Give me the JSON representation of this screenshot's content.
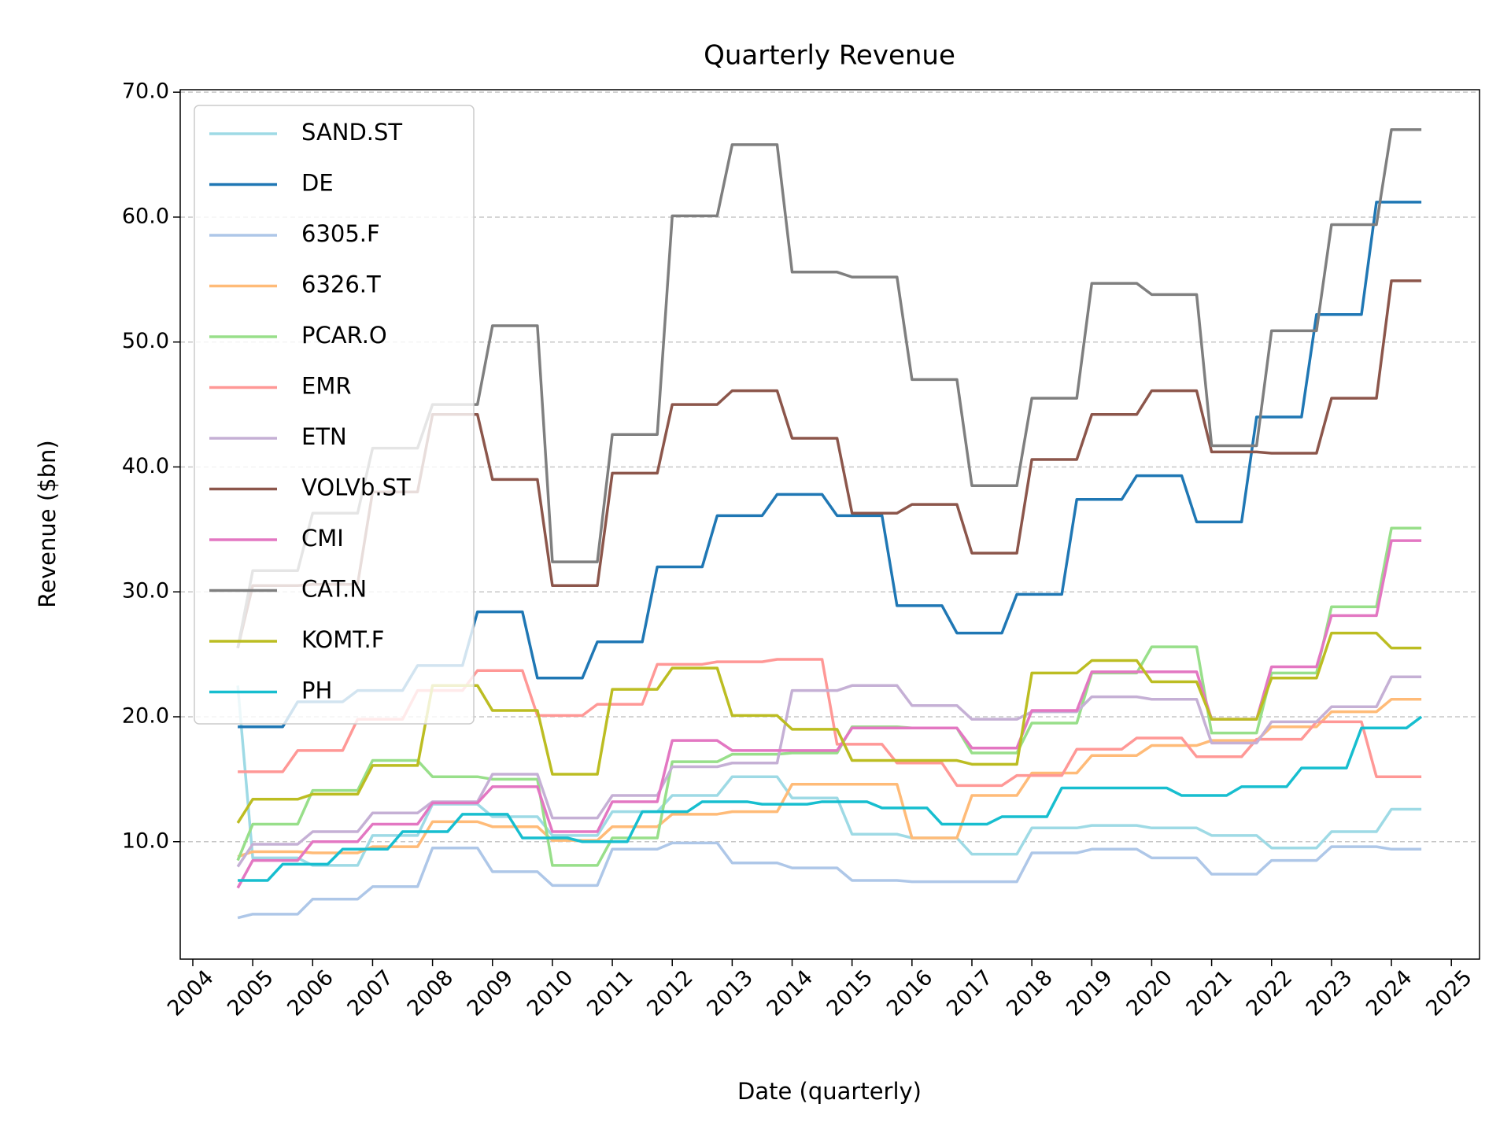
{
  "chart_data": {
    "type": "line",
    "title": "Quarterly Revenue",
    "xlabel": "Date (quarterly)",
    "ylabel": "Revenue ($bn)",
    "x": [
      "2004-10",
      "2005-01",
      "2005-04",
      "2005-07",
      "2005-10",
      "2006-01",
      "2006-04",
      "2006-07",
      "2006-10",
      "2007-01",
      "2007-04",
      "2007-07",
      "2007-10",
      "2008-01",
      "2008-04",
      "2008-07",
      "2008-10",
      "2009-01",
      "2009-04",
      "2009-07",
      "2009-10",
      "2010-01",
      "2010-04",
      "2010-07",
      "2010-10",
      "2011-01",
      "2011-04",
      "2011-07",
      "2011-10",
      "2012-01",
      "2012-04",
      "2012-07",
      "2012-10",
      "2013-01",
      "2013-04",
      "2013-07",
      "2013-10",
      "2014-01",
      "2014-04",
      "2014-07",
      "2014-10",
      "2015-01",
      "2015-04",
      "2015-07",
      "2015-10",
      "2016-01",
      "2016-04",
      "2016-07",
      "2016-10",
      "2017-01",
      "2017-04",
      "2017-07",
      "2017-10",
      "2018-01",
      "2018-04",
      "2018-07",
      "2018-10",
      "2019-01",
      "2019-04",
      "2019-07",
      "2019-10",
      "2020-01",
      "2020-04",
      "2020-07",
      "2020-10",
      "2021-01",
      "2021-04",
      "2021-07",
      "2021-10",
      "2022-01",
      "2022-04",
      "2022-07",
      "2022-10",
      "2023-01",
      "2023-04",
      "2023-07",
      "2023-10",
      "2024-01",
      "2024-04",
      "2024-07"
    ],
    "series": [
      {
        "name": "SAND.ST",
        "color": "#9edae5",
        "values": [
          22.5,
          8.7,
          8.7,
          8.7,
          8.7,
          8.1,
          8.1,
          8.1,
          8.1,
          10.5,
          10.5,
          10.5,
          10.5,
          13,
          13,
          13,
          13,
          12,
          12,
          12,
          12,
          10.5,
          10.5,
          10.5,
          10.5,
          12.4,
          12.4,
          12.4,
          12.4,
          13.7,
          13.7,
          13.7,
          13.7,
          15.2,
          15.2,
          15.2,
          15.2,
          13.5,
          13.5,
          13.5,
          13.5,
          10.6,
          10.6,
          10.6,
          10.6,
          10.3,
          10.3,
          10.3,
          10.3,
          9,
          9,
          9,
          9,
          11.1,
          11.1,
          11.1,
          11.1,
          11.3,
          11.3,
          11.3,
          11.3,
          11.1,
          11.1,
          11.1,
          11.1,
          10.5,
          10.5,
          10.5,
          10.5,
          9.5,
          9.5,
          9.5,
          9.5,
          10.8,
          10.8,
          10.8,
          10.8,
          12.6,
          12.6,
          12.6
        ]
      },
      {
        "name": "DE",
        "color": "#1f77b4",
        "values": [
          19.2,
          19.2,
          19.2,
          19.2,
          21.2,
          21.2,
          21.2,
          21.2,
          22.1,
          22.1,
          22.1,
          22.1,
          24.1,
          24.1,
          24.1,
          24.1,
          28.4,
          28.4,
          28.4,
          28.4,
          23.1,
          23.1,
          23.1,
          23.1,
          26,
          26,
          26,
          26,
          32,
          32,
          32,
          32,
          36.1,
          36.1,
          36.1,
          36.1,
          37.8,
          37.8,
          37.8,
          37.8,
          36.1,
          36.1,
          36.1,
          36.1,
          28.9,
          28.9,
          28.9,
          28.9,
          26.7,
          26.7,
          26.7,
          26.7,
          29.8,
          29.8,
          29.8,
          29.8,
          37.4,
          37.4,
          37.4,
          37.4,
          39.3,
          39.3,
          39.3,
          39.3,
          35.6,
          35.6,
          35.6,
          35.6,
          44,
          44,
          44,
          44,
          52.2,
          52.2,
          52.2,
          52.2,
          61.2,
          61.2,
          61.2,
          61.2
        ]
      },
      {
        "name": "6305.F",
        "color": "#aec7e8",
        "values": [
          3.9,
          4.2,
          4.2,
          4.2,
          4.2,
          5.4,
          5.4,
          5.4,
          5.4,
          6.4,
          6.4,
          6.4,
          6.4,
          9.5,
          9.5,
          9.5,
          9.5,
          7.6,
          7.6,
          7.6,
          7.6,
          6.5,
          6.5,
          6.5,
          6.5,
          9.4,
          9.4,
          9.4,
          9.4,
          9.9,
          9.9,
          9.9,
          9.9,
          8.3,
          8.3,
          8.3,
          8.3,
          7.9,
          7.9,
          7.9,
          7.9,
          6.9,
          6.9,
          6.9,
          6.9,
          6.8,
          6.8,
          6.8,
          6.8,
          6.8,
          6.8,
          6.8,
          6.8,
          9.1,
          9.1,
          9.1,
          9.1,
          9.4,
          9.4,
          9.4,
          9.4,
          8.7,
          8.7,
          8.7,
          8.7,
          7.4,
          7.4,
          7.4,
          7.4,
          8.5,
          8.5,
          8.5,
          8.5,
          9.6,
          9.6,
          9.6,
          9.6,
          9.4,
          9.4,
          9.4
        ]
      },
      {
        "name": "6326.T",
        "color": "#ffbb78",
        "values": [
          8.8,
          9.2,
          9.2,
          9.2,
          9.2,
          9.1,
          9.1,
          9.1,
          9.1,
          9.6,
          9.6,
          9.6,
          9.6,
          11.6,
          11.6,
          11.6,
          11.6,
          11.2,
          11.2,
          11.2,
          11.2,
          10.1,
          10.1,
          10.1,
          10.1,
          11.2,
          11.2,
          11.2,
          11.2,
          12.2,
          12.2,
          12.2,
          12.2,
          12.4,
          12.4,
          12.4,
          12.4,
          14.6,
          14.6,
          14.6,
          14.6,
          14.6,
          14.6,
          14.6,
          14.6,
          10.3,
          10.3,
          10.3,
          10.3,
          13.7,
          13.7,
          13.7,
          13.7,
          15.5,
          15.5,
          15.5,
          15.5,
          16.9,
          16.9,
          16.9,
          16.9,
          17.7,
          17.7,
          17.7,
          17.7,
          18.1,
          18.1,
          18.1,
          18.1,
          19.2,
          19.2,
          19.2,
          19.2,
          20.4,
          20.4,
          20.4,
          20.4,
          21.4,
          21.4,
          21.4
        ]
      },
      {
        "name": "PCAR.O",
        "color": "#98df8a",
        "values": [
          8.5,
          11.4,
          11.4,
          11.4,
          11.4,
          14.1,
          14.1,
          14.1,
          14.1,
          16.5,
          16.5,
          16.5,
          16.5,
          15.2,
          15.2,
          15.2,
          15.2,
          15,
          15,
          15,
          15,
          8.1,
          8.1,
          8.1,
          8.1,
          10.3,
          10.3,
          10.3,
          10.3,
          16.4,
          16.4,
          16.4,
          16.4,
          17,
          17,
          17,
          17,
          17.1,
          17.1,
          17.1,
          17.1,
          19.2,
          19.2,
          19.2,
          19.2,
          19.1,
          19.1,
          19.1,
          19.1,
          17.1,
          17.1,
          17.1,
          17.1,
          19.5,
          19.5,
          19.5,
          19.5,
          23.5,
          23.5,
          23.5,
          23.5,
          25.6,
          25.6,
          25.6,
          25.6,
          18.7,
          18.7,
          18.7,
          18.7,
          23.5,
          23.5,
          23.5,
          23.5,
          28.8,
          28.8,
          28.8,
          28.8,
          35.1,
          35.1,
          35.1
        ]
      },
      {
        "name": "EMR",
        "color": "#ff9896",
        "values": [
          15.6,
          15.6,
          15.6,
          15.6,
          17.3,
          17.3,
          17.3,
          17.3,
          19.8,
          19.8,
          19.8,
          19.8,
          22.1,
          22.1,
          22.1,
          22.1,
          23.7,
          23.7,
          23.7,
          23.7,
          20.1,
          20.1,
          20.1,
          20.1,
          21,
          21,
          21,
          21,
          24.2,
          24.2,
          24.2,
          24.2,
          24.4,
          24.4,
          24.4,
          24.4,
          24.6,
          24.6,
          24.6,
          24.6,
          17.8,
          17.8,
          17.8,
          17.8,
          16.3,
          16.3,
          16.3,
          16.3,
          14.5,
          14.5,
          14.5,
          14.5,
          15.3,
          15.3,
          15.3,
          15.3,
          17.4,
          17.4,
          17.4,
          17.4,
          18.3,
          18.3,
          18.3,
          18.3,
          16.8,
          16.8,
          16.8,
          16.8,
          18.2,
          18.2,
          18.2,
          18.2,
          19.6,
          19.6,
          19.6,
          19.6,
          15.2,
          15.2,
          15.2,
          15.2
        ]
      },
      {
        "name": "ETN",
        "color": "#c5b0d5",
        "values": [
          8,
          9.8,
          9.8,
          9.8,
          9.8,
          10.8,
          10.8,
          10.8,
          10.8,
          12.3,
          12.3,
          12.3,
          12.3,
          13.2,
          13.2,
          13.2,
          13.2,
          15.4,
          15.4,
          15.4,
          15.4,
          11.9,
          11.9,
          11.9,
          11.9,
          13.7,
          13.7,
          13.7,
          13.7,
          16,
          16,
          16,
          16,
          16.3,
          16.3,
          16.3,
          16.3,
          22.1,
          22.1,
          22.1,
          22.1,
          22.5,
          22.5,
          22.5,
          22.5,
          20.9,
          20.9,
          20.9,
          20.9,
          19.8,
          19.8,
          19.8,
          19.8,
          20.4,
          20.4,
          20.4,
          20.4,
          21.6,
          21.6,
          21.6,
          21.6,
          21.4,
          21.4,
          21.4,
          21.4,
          17.9,
          17.9,
          17.9,
          17.9,
          19.6,
          19.6,
          19.6,
          19.6,
          20.8,
          20.8,
          20.8,
          20.8,
          23.2,
          23.2,
          23.2
        ]
      },
      {
        "name": "VOLVb.ST",
        "color": "#8c564b",
        "values": [
          25.5,
          30.5,
          30.5,
          30.5,
          30.5,
          30.6,
          30.6,
          30.6,
          30.6,
          38,
          38,
          38,
          38,
          44.2,
          44.2,
          44.2,
          44.2,
          39,
          39,
          39,
          39,
          30.5,
          30.5,
          30.5,
          30.5,
          39.5,
          39.5,
          39.5,
          39.5,
          45,
          45,
          45,
          45,
          46.1,
          46.1,
          46.1,
          46.1,
          42.3,
          42.3,
          42.3,
          42.3,
          36.3,
          36.3,
          36.3,
          36.3,
          37,
          37,
          37,
          37,
          33.1,
          33.1,
          33.1,
          33.1,
          40.6,
          40.6,
          40.6,
          40.6,
          44.2,
          44.2,
          44.2,
          44.2,
          46.1,
          46.1,
          46.1,
          46.1,
          41.2,
          41.2,
          41.2,
          41.2,
          41.1,
          41.1,
          41.1,
          41.1,
          45.5,
          45.5,
          45.5,
          45.5,
          54.9,
          54.9,
          54.9
        ]
      },
      {
        "name": "CMI",
        "color": "#e377c2",
        "values": [
          6.3,
          8.5,
          8.5,
          8.5,
          8.5,
          10,
          10,
          10,
          10,
          11.4,
          11.4,
          11.4,
          11.4,
          13.1,
          13.1,
          13.1,
          13.1,
          14.4,
          14.4,
          14.4,
          14.4,
          10.8,
          10.8,
          10.8,
          10.8,
          13.2,
          13.2,
          13.2,
          13.2,
          18.1,
          18.1,
          18.1,
          18.1,
          17.3,
          17.3,
          17.3,
          17.3,
          17.3,
          17.3,
          17.3,
          17.3,
          19.1,
          19.1,
          19.1,
          19.1,
          19.1,
          19.1,
          19.1,
          19.1,
          17.5,
          17.5,
          17.5,
          17.5,
          20.5,
          20.5,
          20.5,
          20.5,
          23.6,
          23.6,
          23.6,
          23.6,
          23.6,
          23.6,
          23.6,
          23.6,
          19.8,
          19.8,
          19.8,
          19.8,
          24,
          24,
          24,
          24,
          28.1,
          28.1,
          28.1,
          28.1,
          34.1,
          34.1,
          34.1
        ]
      },
      {
        "name": "CAT.N",
        "color": "#7f7f7f",
        "values": [
          25.5,
          31.7,
          31.7,
          31.7,
          31.7,
          36.3,
          36.3,
          36.3,
          36.3,
          41.5,
          41.5,
          41.5,
          41.5,
          45,
          45,
          45,
          45,
          51.3,
          51.3,
          51.3,
          51.3,
          32.4,
          32.4,
          32.4,
          32.4,
          42.6,
          42.6,
          42.6,
          42.6,
          60.1,
          60.1,
          60.1,
          60.1,
          65.8,
          65.8,
          65.8,
          65.8,
          55.6,
          55.6,
          55.6,
          55.6,
          55.2,
          55.2,
          55.2,
          55.2,
          47,
          47,
          47,
          47,
          38.5,
          38.5,
          38.5,
          38.5,
          45.5,
          45.5,
          45.5,
          45.5,
          54.7,
          54.7,
          54.7,
          54.7,
          53.8,
          53.8,
          53.8,
          53.8,
          41.7,
          41.7,
          41.7,
          41.7,
          50.9,
          50.9,
          50.9,
          50.9,
          59.4,
          59.4,
          59.4,
          59.4,
          67,
          67,
          67
        ]
      },
      {
        "name": "KOMT.F",
        "color": "#bcbd22",
        "values": [
          11.5,
          13.4,
          13.4,
          13.4,
          13.4,
          13.8,
          13.8,
          13.8,
          13.8,
          16.1,
          16.1,
          16.1,
          16.1,
          22.5,
          22.5,
          22.5,
          22.5,
          20.5,
          20.5,
          20.5,
          20.5,
          15.4,
          15.4,
          15.4,
          15.4,
          22.2,
          22.2,
          22.2,
          22.2,
          23.9,
          23.9,
          23.9,
          23.9,
          20.1,
          20.1,
          20.1,
          20.1,
          19,
          19,
          19,
          19,
          16.5,
          16.5,
          16.5,
          16.5,
          16.5,
          16.5,
          16.5,
          16.5,
          16.2,
          16.2,
          16.2,
          16.2,
          23.5,
          23.5,
          23.5,
          23.5,
          24.5,
          24.5,
          24.5,
          24.5,
          22.8,
          22.8,
          22.8,
          22.8,
          19.8,
          19.8,
          19.8,
          19.8,
          23.1,
          23.1,
          23.1,
          23.1,
          26.7,
          26.7,
          26.7,
          26.7,
          25.5,
          25.5,
          25.5
        ]
      },
      {
        "name": "PH",
        "color": "#17becf",
        "values": [
          6.9,
          6.9,
          6.9,
          8.2,
          8.2,
          8.2,
          8.2,
          9.4,
          9.4,
          9.4,
          9.4,
          10.8,
          10.8,
          10.8,
          10.8,
          12.2,
          12.2,
          12.2,
          12.2,
          10.3,
          10.3,
          10.3,
          10.3,
          10,
          10,
          10,
          10,
          12.4,
          12.4,
          12.4,
          12.4,
          13.2,
          13.2,
          13.2,
          13.2,
          13,
          13,
          13,
          13,
          13.2,
          13.2,
          13.2,
          13.2,
          12.7,
          12.7,
          12.7,
          12.7,
          11.4,
          11.4,
          11.4,
          11.4,
          12,
          12,
          12,
          12,
          14.3,
          14.3,
          14.3,
          14.3,
          14.3,
          14.3,
          14.3,
          14.3,
          13.7,
          13.7,
          13.7,
          13.7,
          14.4,
          14.4,
          14.4,
          14.4,
          15.9,
          15.9,
          15.9,
          15.9,
          19.1,
          19.1,
          19.1,
          19.1,
          20
        ]
      }
    ],
    "xlim": [
      2003.79,
      2025.47
    ],
    "xticks": [
      2004,
      2005,
      2006,
      2007,
      2008,
      2009,
      2010,
      2011,
      2012,
      2013,
      2014,
      2015,
      2016,
      2017,
      2018,
      2019,
      2020,
      2021,
      2022,
      2023,
      2024,
      2025
    ],
    "ylim": [
      0.6,
      70.2
    ],
    "yticks": [
      {
        "value": 10,
        "label": "10.0"
      },
      {
        "value": 20,
        "label": "20.0"
      },
      {
        "value": 30,
        "label": "30.0"
      },
      {
        "value": 40,
        "label": "40.0"
      },
      {
        "value": 50,
        "label": "50.0"
      },
      {
        "value": 60,
        "label": "60.0"
      },
      {
        "value": 70,
        "label": "70.0"
      }
    ],
    "grid": true,
    "legend": "upper left"
  }
}
